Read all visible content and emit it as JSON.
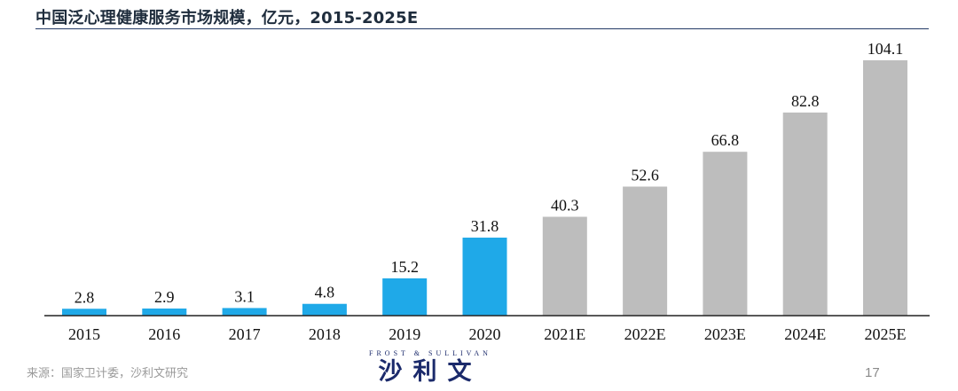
{
  "title": "中国泛心理健康服务市场规模，亿元，2015-2025E",
  "source": "来源：国家卫计委，沙利文研究",
  "logo": {
    "en": "FROST & SULLIVAN",
    "cn": "沙利文"
  },
  "page_number": "17",
  "colors": {
    "actual": "#1fa9e8",
    "forecast": "#bdbdbd",
    "axis": "#222222",
    "title_rule": "#233a66"
  },
  "chart_data": {
    "type": "bar",
    "categories": [
      "2015",
      "2016",
      "2017",
      "2018",
      "2019",
      "2020",
      "2021E",
      "2022E",
      "2023E",
      "2024E",
      "2025E"
    ],
    "values": [
      2.8,
      2.9,
      3.1,
      4.8,
      15.2,
      31.8,
      40.3,
      52.6,
      66.8,
      82.8,
      104.1
    ],
    "value_labels": [
      "2.8",
      "2.9",
      "3.1",
      "4.8",
      "15.2",
      "31.8",
      "40.3",
      "52.6",
      "66.8",
      "82.8",
      "104.1"
    ],
    "bar_colors": [
      "#1fa9e8",
      "#1fa9e8",
      "#1fa9e8",
      "#1fa9e8",
      "#1fa9e8",
      "#1fa9e8",
      "#bdbdbd",
      "#bdbdbd",
      "#bdbdbd",
      "#bdbdbd",
      "#bdbdbd"
    ],
    "xlabel": "",
    "ylabel": "",
    "ylim": [
      0,
      104.1
    ],
    "grid": false,
    "legend": "none"
  }
}
